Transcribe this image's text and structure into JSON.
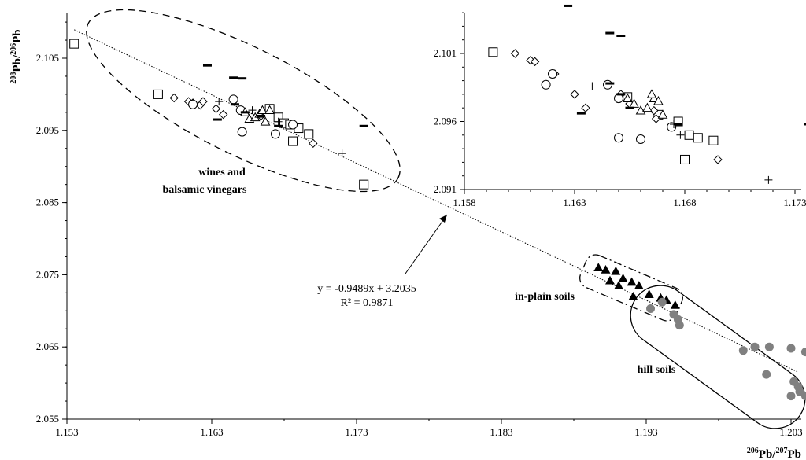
{
  "chart_data": {
    "type": "scatter",
    "main": {
      "x_ticks": [
        "1.153",
        "1.163",
        "1.173",
        "1.183",
        "1.193",
        "1.203"
      ],
      "x_tick_values": [
        1.153,
        1.163,
        1.173,
        1.183,
        1.193,
        1.203
      ],
      "y_ticks": [
        "2.055",
        "2.065",
        "2.075",
        "2.085",
        "2.095",
        "2.105"
      ],
      "y_tick_values": [
        2.055,
        2.065,
        2.075,
        2.085,
        2.095,
        2.105
      ],
      "xlim": [
        1.153,
        1.2045
      ],
      "ylim": [
        2.055,
        2.1105
      ],
      "xlabel": {
        "pre_a": "206",
        "mid": "Pb/",
        "pre_b": "207",
        "post": "Pb"
      },
      "ylabel": {
        "pre_a": "208",
        "mid": "Pb/",
        "pre_b": "206",
        "post": "Pb"
      },
      "fit": {
        "slope": -0.9489,
        "intercept": 3.2035,
        "x_range": [
          1.1535,
          1.2035
        ]
      },
      "equation": "y = -0.9489x + 3.2035",
      "r2": "R² = 0.9871",
      "labels": {
        "wines_line1": "wines and",
        "wines_line2": "balsamic vinegars",
        "in_plain": "in-plain soils",
        "hill": "hill soils"
      },
      "series": [
        {
          "marker": "open-square",
          "points": [
            [
              1.1535,
              2.107
            ],
            [
              1.1593,
              2.1
            ],
            [
              1.167,
              2.098
            ],
            [
              1.1676,
              2.0968
            ],
            [
              1.168,
              2.096
            ],
            [
              1.1684,
              2.0958
            ],
            [
              1.169,
              2.0953
            ],
            [
              1.1697,
              2.0945
            ],
            [
              1.1686,
              2.0935
            ],
            [
              1.1735,
              2.0875
            ]
          ]
        },
        {
          "marker": "open-diamond",
          "points": [
            [
              1.1604,
              2.0995
            ],
            [
              1.1614,
              2.099
            ],
            [
              1.1617,
              2.0988
            ],
            [
              1.1622,
              2.0985
            ],
            [
              1.1624,
              2.099
            ],
            [
              1.1633,
              2.098
            ],
            [
              1.1638,
              2.0972
            ],
            [
              1.1664,
              2.097
            ],
            [
              1.17,
              2.0932
            ]
          ]
        },
        {
          "marker": "open-circle",
          "points": [
            [
              1.1617,
              2.0986
            ],
            [
              1.1645,
              2.0993
            ],
            [
              1.165,
              2.0978
            ],
            [
              1.1651,
              2.0948
            ],
            [
              1.1674,
              2.0945
            ],
            [
              1.1686,
              2.0958
            ]
          ]
        },
        {
          "marker": "open-triangle",
          "points": [
            [
              1.1653,
              2.0975
            ],
            [
              1.1656,
              2.0966
            ],
            [
              1.166,
              2.0968
            ],
            [
              1.1663,
              2.0973
            ],
            [
              1.1665,
              2.0978
            ],
            [
              1.1667,
              2.0962
            ],
            [
              1.167,
              2.0978
            ]
          ]
        },
        {
          "marker": "plus",
          "points": [
            [
              1.1635,
              2.099
            ],
            [
              1.1658,
              2.0978
            ],
            [
              1.1676,
              2.0962
            ],
            [
              1.172,
              2.0918
            ]
          ]
        },
        {
          "marker": "dash",
          "points": [
            [
              1.1627,
              2.104
            ],
            [
              1.1645,
              2.1023
            ],
            [
              1.1651,
              2.1022
            ],
            [
              1.1634,
              2.0965
            ],
            [
              1.1646,
              2.0986
            ],
            [
              1.1653,
              2.0975
            ],
            [
              1.1664,
              2.097
            ],
            [
              1.1676,
              2.0956
            ],
            [
              1.1735,
              2.0956
            ]
          ]
        },
        {
          "marker": "filled-triangle",
          "points": [
            [
              1.1897,
              2.076
            ],
            [
              1.1902,
              2.0757
            ],
            [
              1.1909,
              2.0755
            ],
            [
              1.1914,
              2.0745
            ],
            [
              1.1905,
              2.0742
            ],
            [
              1.192,
              2.074
            ],
            [
              1.1925,
              2.0735
            ],
            [
              1.1911,
              2.0735
            ],
            [
              1.1932,
              2.0723
            ],
            [
              1.194,
              2.0718
            ],
            [
              1.1921,
              2.072
            ],
            [
              1.1944,
              2.0715
            ],
            [
              1.195,
              2.0708
            ]
          ]
        },
        {
          "marker": "filled-circle",
          "points": [
            [
              1.1941,
              2.0712
            ],
            [
              1.1933,
              2.0703
            ],
            [
              1.1949,
              2.0695
            ],
            [
              1.1952,
              2.0688
            ],
            [
              1.1953,
              2.068
            ],
            [
              1.1997,
              2.0645
            ],
            [
              1.2005,
              2.065
            ],
            [
              1.2015,
              2.065
            ],
            [
              1.203,
              2.0648
            ],
            [
              1.204,
              2.0643
            ],
            [
              1.2013,
              2.0612
            ],
            [
              1.2032,
              2.0602
            ],
            [
              1.2035,
              2.0595
            ],
            [
              1.2045,
              2.059
            ],
            [
              1.205,
              2.0585
            ],
            [
              1.203,
              2.0582
            ],
            [
              1.204,
              2.0582
            ],
            [
              1.2036,
              2.0588
            ]
          ]
        }
      ]
    },
    "inset": {
      "x_ticks": [
        "1.158",
        "1.163",
        "1.168",
        "1.173"
      ],
      "x_tick_values": [
        1.158,
        1.163,
        1.168,
        1.173
      ],
      "y_ticks": [
        "2.091",
        "2.096",
        "2.101"
      ],
      "y_tick_values": [
        2.091,
        2.096,
        2.101
      ],
      "xlim": [
        1.158,
        1.1737
      ],
      "ylim": [
        2.091,
        2.1045
      ],
      "series": [
        {
          "marker": "open-square",
          "points": [
            [
              1.1593,
              2.1011
            ],
            [
              1.1654,
              2.0978
            ],
            [
              1.1668,
              2.0965
            ],
            [
              1.1677,
              2.096
            ],
            [
              1.1682,
              2.095
            ],
            [
              1.1686,
              2.0948
            ],
            [
              1.1693,
              2.0946
            ],
            [
              1.168,
              2.0932
            ]
          ]
        },
        {
          "marker": "open-diamond",
          "points": [
            [
              1.1603,
              2.101
            ],
            [
              1.161,
              2.1005
            ],
            [
              1.1612,
              2.1004
            ],
            [
              1.1621,
              2.0995
            ],
            [
              1.163,
              2.098
            ],
            [
              1.1635,
              2.097
            ],
            [
              1.1651,
              2.098
            ],
            [
              1.1655,
              2.0973
            ],
            [
              1.1666,
              2.0968
            ],
            [
              1.1667,
              2.0962
            ],
            [
              1.1695,
              2.0932
            ]
          ]
        },
        {
          "marker": "open-circle",
          "points": [
            [
              1.162,
              2.0995
            ],
            [
              1.1617,
              2.0987
            ],
            [
              1.1645,
              2.0987
            ],
            [
              1.165,
              2.0977
            ],
            [
              1.165,
              2.0948
            ],
            [
              1.1674,
              2.0956
            ],
            [
              1.166,
              2.0947
            ]
          ]
        },
        {
          "marker": "open-triangle",
          "points": [
            [
              1.1654,
              2.0977
            ],
            [
              1.166,
              2.0968
            ],
            [
              1.1657,
              2.0973
            ],
            [
              1.1663,
              2.097
            ],
            [
              1.1666,
              2.0977
            ],
            [
              1.1668,
              2.0975
            ],
            [
              1.167,
              2.0965
            ],
            [
              1.1665,
              2.098
            ]
          ]
        },
        {
          "marker": "plus",
          "points": [
            [
              1.1638,
              2.0986
            ],
            [
              1.1675,
              2.0958
            ],
            [
              1.1678,
              2.095
            ],
            [
              1.1718,
              2.0917
            ]
          ]
        },
        {
          "marker": "dash",
          "points": [
            [
              1.1627,
              2.1045
            ],
            [
              1.1646,
              2.1025
            ],
            [
              1.1651,
              2.1023
            ],
            [
              1.1633,
              2.0966
            ],
            [
              1.1646,
              2.0988
            ],
            [
              1.1651,
              2.098
            ],
            [
              1.1655,
              2.097
            ],
            [
              1.1677,
              2.0958
            ],
            [
              1.1736,
              2.0958
            ]
          ]
        }
      ]
    }
  }
}
